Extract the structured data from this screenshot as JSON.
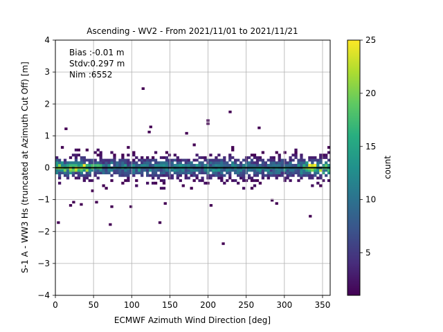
{
  "chart_data": {
    "type": "heatmap",
    "title": "Ascending - WV2 - From 2021/11/01 to 2021/11/21",
    "xlabel": "ECMWF Azimuth Wind Direction [deg]",
    "ylabel": "S-1 A - WW3 Hs (truncated at Azimuth Cut Off) [m]",
    "xlim": [
      0,
      360
    ],
    "ylim": [
      -4,
      4
    ],
    "x_ticks": [
      "0",
      "50",
      "100",
      "150",
      "200",
      "250",
      "300",
      "350"
    ],
    "y_ticks": [
      "−4",
      "−3",
      "−2",
      "−1",
      "0",
      "1",
      "2",
      "3",
      "4"
    ],
    "grid": true,
    "stats": {
      "bias": "Bias :-0.01 m",
      "stdv": "Stdv:0.297 m",
      "nim": "Nim :6552"
    },
    "reference_line": {
      "y": 0,
      "color": "#000000"
    },
    "colorbar": {
      "label": "count",
      "range": [
        1,
        25
      ],
      "ticks": [
        "5",
        "10",
        "15",
        "20",
        "25"
      ],
      "colormap": "viridis"
    },
    "outliers": [
      {
        "x": 2,
        "y": -1.72
      },
      {
        "x": 12,
        "y": 1.22
      },
      {
        "x": 18,
        "y": -1.18
      },
      {
        "x": 22,
        "y": -1.08
      },
      {
        "x": 32,
        "y": -1.15
      },
      {
        "x": 52,
        "y": -1.08
      },
      {
        "x": 70,
        "y": -1.78
      },
      {
        "x": 72,
        "y": -1.22
      },
      {
        "x": 97,
        "y": -1.22
      },
      {
        "x": 113,
        "y": 2.48
      },
      {
        "x": 121,
        "y": 1.12
      },
      {
        "x": 123,
        "y": 1.28
      },
      {
        "x": 135,
        "y": -1.72
      },
      {
        "x": 142,
        "y": -1.12
      },
      {
        "x": 170,
        "y": 1.08
      },
      {
        "x": 198,
        "y": 1.48
      },
      {
        "x": 198,
        "y": 1.38
      },
      {
        "x": 202,
        "y": -1.18
      },
      {
        "x": 218,
        "y": -2.38
      },
      {
        "x": 227,
        "y": 1.75
      },
      {
        "x": 265,
        "y": 1.25
      },
      {
        "x": 282,
        "y": -1.02
      },
      {
        "x": 288,
        "y": -1.12
      },
      {
        "x": 332,
        "y": -1.52
      }
    ]
  }
}
